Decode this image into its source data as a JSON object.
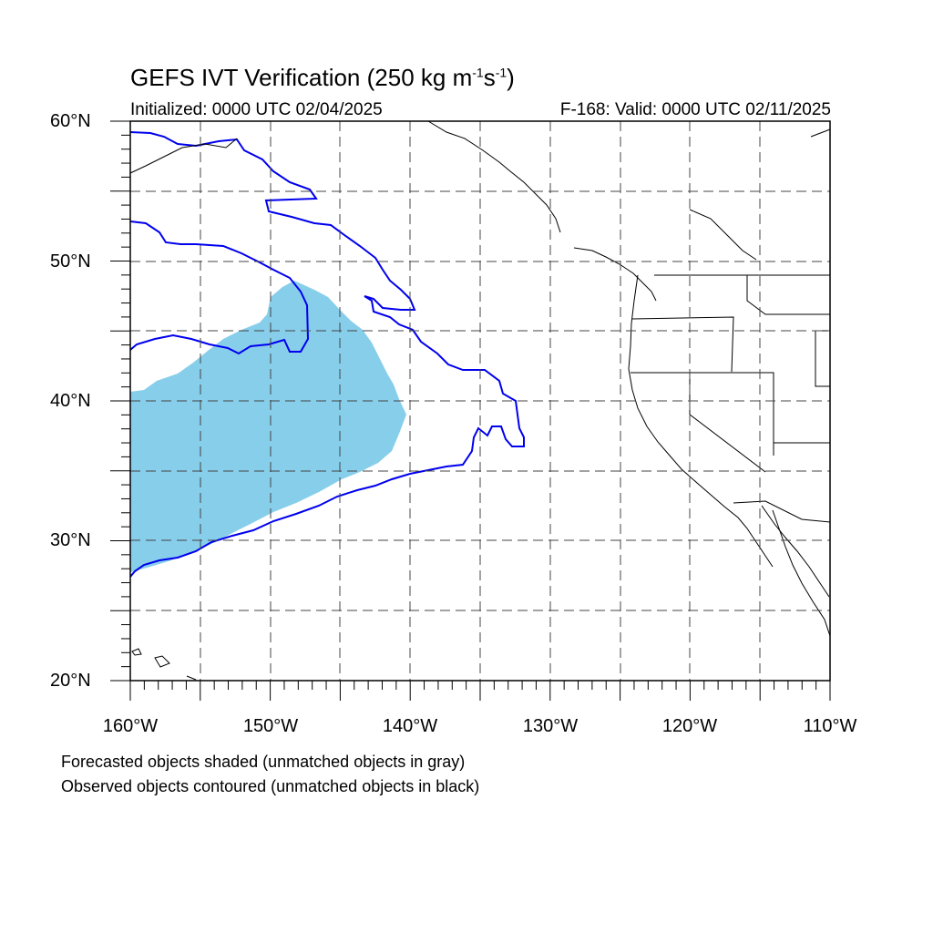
{
  "title": {
    "main": "GEFS IVT Verification (250 kg m",
    "exp1": "-1",
    "mid": "s",
    "exp2": "-1",
    "end": ")"
  },
  "subtitle_left": "Initialized: 0000 UTC 02/04/2025",
  "subtitle_right": "F-168: Valid: 0000 UTC 02/11/2025",
  "lat_labels": [
    "60°N",
    "50°N",
    "40°N",
    "30°N",
    "20°N"
  ],
  "lon_labels": [
    "160°W",
    "150°W",
    "140°W",
    "130°W",
    "120°W",
    "110°W"
  ],
  "notes": [
    "Forecasted objects shaded (unmatched objects in gray)",
    "Observed objects contoured (unmatched objects in black)"
  ],
  "colors": {
    "forecast_fill": "#87CEEB",
    "observed_contour": "#0000EE",
    "coastline": "#000000",
    "grid": "#444444"
  },
  "map": {
    "lat_range": [
      20,
      60
    ],
    "lon_range": [
      -160,
      -110
    ],
    "grid_spacing_deg": 5,
    "forecast_object_color": "light blue",
    "observed_object_color": "blue"
  }
}
